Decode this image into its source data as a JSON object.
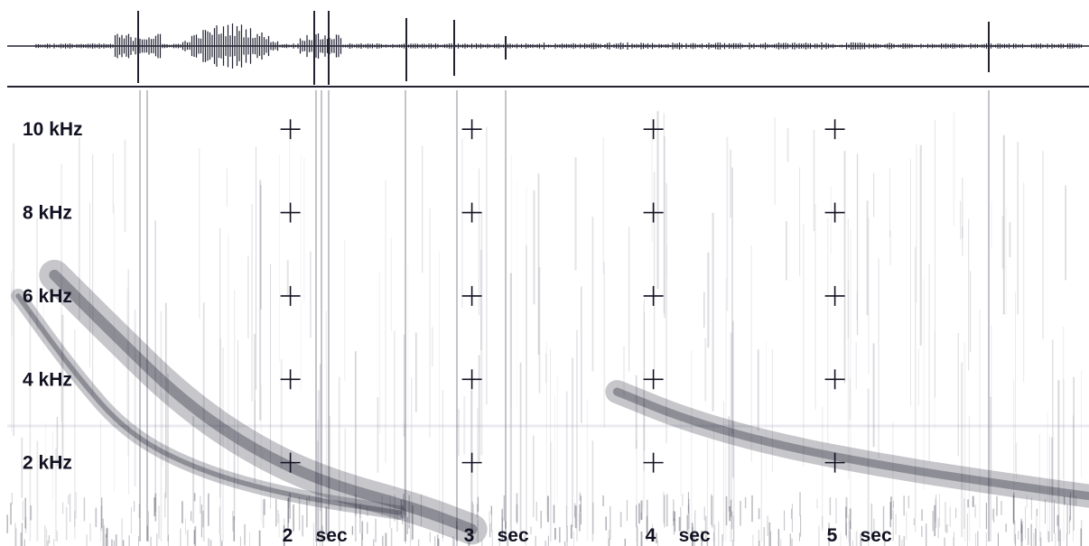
{
  "chart_data": {
    "type": "spectrogram",
    "waveform": true,
    "y_unit": "kHz",
    "yticks": [
      {
        "value": 10,
        "label": "10",
        "unit": "kHz"
      },
      {
        "value": 8,
        "label": "8",
        "unit": "kHz"
      },
      {
        "value": 6,
        "label": "6",
        "unit": "kHz"
      },
      {
        "value": 4,
        "label": "4",
        "unit": "kHz"
      },
      {
        "value": 2,
        "label": "2",
        "unit": "kHz"
      }
    ],
    "x_unit": "sec",
    "xticks": [
      {
        "value": 2,
        "label": "2",
        "unit": "sec"
      },
      {
        "value": 3,
        "label": "3",
        "unit": "sec"
      },
      {
        "value": 4,
        "label": "4",
        "unit": "sec"
      },
      {
        "value": 5,
        "label": "5",
        "unit": "sec"
      }
    ],
    "xlim": [
      0.4,
      6.4
    ],
    "ylim": [
      0,
      11
    ],
    "grid": "crosses",
    "series": [
      {
        "points": [
          [
            0.7,
            6.5
          ],
          [
            1.0,
            5.2
          ],
          [
            1.4,
            3.5
          ],
          [
            1.8,
            2.3
          ],
          [
            2.2,
            1.5
          ],
          [
            2.7,
            0.9
          ],
          [
            3.0,
            0.4
          ]
        ]
      },
      {
        "points": [
          [
            0.5,
            6.0
          ],
          [
            0.8,
            4.2
          ],
          [
            1.1,
            2.7
          ],
          [
            1.5,
            1.8
          ],
          [
            2.0,
            1.2
          ],
          [
            2.6,
            0.8
          ]
        ]
      },
      {
        "points": [
          [
            3.8,
            3.7
          ],
          [
            4.2,
            3.0
          ],
          [
            4.7,
            2.4
          ],
          [
            5.3,
            1.9
          ],
          [
            5.9,
            1.5
          ],
          [
            6.4,
            1.2
          ]
        ]
      }
    ],
    "colors": {
      "ink": "#111122",
      "noise": "#7a7a8a",
      "background": "#ffffff"
    }
  }
}
